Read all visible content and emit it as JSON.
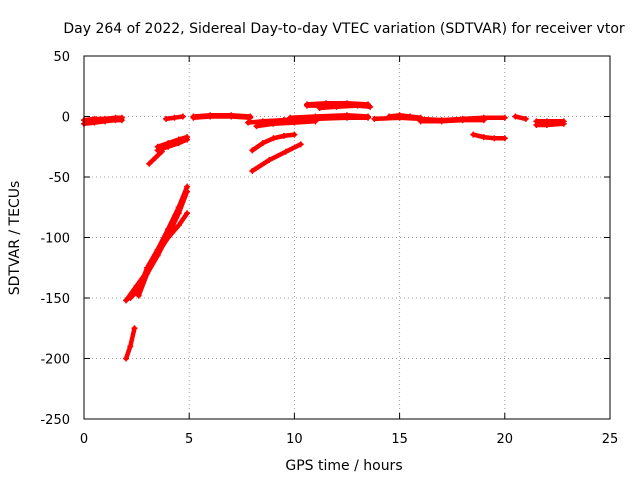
{
  "chart_data": {
    "type": "scatter",
    "title": "Day 264 of 2022, Sidereal Day-to-day VTEC variation (SDTVAR) for receiver vtor",
    "xlabel": "GPS time / hours",
    "ylabel": "SDTVAR / TECUs",
    "xlim": [
      0,
      25
    ],
    "ylim": [
      -250,
      50
    ],
    "x_ticks": [
      0,
      5,
      10,
      15,
      20,
      25
    ],
    "y_ticks": [
      -250,
      -200,
      -150,
      -100,
      -50,
      0,
      50
    ],
    "grid": true,
    "marker": "+",
    "color": "#ff0000",
    "series": [
      {
        "x": [
          0.0,
          0.5,
          1.0,
          1.5,
          1.8
        ],
        "y": [
          -6,
          -5,
          -4,
          -3,
          -3
        ]
      },
      {
        "x": [
          0.0,
          0.5,
          1.0,
          1.5,
          1.8
        ],
        "y": [
          -3,
          -2,
          -2,
          -1,
          -1
        ]
      },
      {
        "x": [
          2.0,
          2.2,
          2.4
        ],
        "y": [
          -200,
          -190,
          -175
        ]
      },
      {
        "x": [
          2.0,
          2.5,
          3.0,
          3.5,
          4.0,
          4.5,
          4.9
        ],
        "y": [
          -152,
          -140,
          -128,
          -113,
          -100,
          -90,
          -80
        ]
      },
      {
        "x": [
          2.2,
          2.6,
          3.0,
          3.5,
          4.0,
          4.5,
          4.9
        ],
        "y": [
          -150,
          -143,
          -125,
          -110,
          -93,
          -75,
          -58
        ]
      },
      {
        "x": [
          2.6,
          3.0,
          3.5,
          4.0,
          4.5,
          4.9
        ],
        "y": [
          -148,
          -130,
          -115,
          -98,
          -80,
          -62
        ]
      },
      {
        "x": [
          3.1,
          3.4,
          3.7
        ],
        "y": [
          -39,
          -34,
          -29
        ]
      },
      {
        "x": [
          3.5,
          4.0,
          4.5,
          4.9
        ],
        "y": [
          -25,
          -22,
          -19,
          -17
        ]
      },
      {
        "x": [
          3.5,
          4.0,
          4.5,
          4.9
        ],
        "y": [
          -28,
          -25,
          -22,
          -19
        ]
      },
      {
        "x": [
          3.9,
          4.3,
          4.7
        ],
        "y": [
          -2,
          -1,
          0
        ]
      },
      {
        "x": [
          5.2,
          6.0,
          7.0,
          7.9
        ],
        "y": [
          0,
          1,
          1,
          0
        ]
      },
      {
        "x": [
          5.2,
          6.0,
          7.0,
          7.9
        ],
        "y": [
          -1,
          0,
          0,
          -1
        ]
      },
      {
        "x": [
          8.0,
          8.8,
          9.6,
          10.3
        ],
        "y": [
          -45,
          -36,
          -29,
          -23
        ]
      },
      {
        "x": [
          8.0,
          8.5,
          9.0,
          9.5,
          10.0
        ],
        "y": [
          -28,
          -22,
          -18,
          -16,
          -15
        ]
      },
      {
        "x": [
          7.8,
          8.5,
          9.5,
          10.5
        ],
        "y": [
          -5,
          -4,
          -3,
          -2
        ]
      },
      {
        "x": [
          8.2,
          9.0,
          10.0,
          11.0
        ],
        "y": [
          -8,
          -6,
          -5,
          -4
        ]
      },
      {
        "x": [
          9.5,
          11.0,
          12.5,
          13.5
        ],
        "y": [
          -3,
          -2,
          -1,
          -1
        ]
      },
      {
        "x": [
          9.8,
          11.0,
          12.5,
          13.5
        ],
        "y": [
          -1,
          0,
          1,
          0
        ]
      },
      {
        "x": [
          10.6,
          11.5,
          12.5,
          13.5
        ],
        "y": [
          10,
          11,
          11,
          10
        ]
      },
      {
        "x": [
          10.6,
          11.5,
          12.5,
          13.5
        ],
        "y": [
          9,
          9,
          10,
          9
        ]
      },
      {
        "x": [
          11.2,
          12.0,
          13.0,
          13.6
        ],
        "y": [
          7,
          8,
          9,
          8
        ]
      },
      {
        "x": [
          13.8,
          15.0,
          16.0,
          17.0,
          18.0,
          19.0,
          20.0
        ],
        "y": [
          -2,
          -1,
          -2,
          -3,
          -2,
          -1,
          -1
        ]
      },
      {
        "x": [
          14.5,
          15.0,
          15.5,
          16.0
        ],
        "y": [
          0,
          1,
          0,
          -1
        ]
      },
      {
        "x": [
          16.0,
          17.0,
          18.0,
          19.0
        ],
        "y": [
          -4,
          -4,
          -3,
          -3
        ]
      },
      {
        "x": [
          18.5,
          19.0,
          19.5,
          20.0
        ],
        "y": [
          -15,
          -17,
          -18,
          -18
        ]
      },
      {
        "x": [
          20.5,
          21.0
        ],
        "y": [
          0,
          -2
        ]
      },
      {
        "x": [
          21.5,
          22.0,
          22.8
        ],
        "y": [
          -4,
          -4,
          -4
        ]
      },
      {
        "x": [
          21.5,
          22.0,
          22.8
        ],
        "y": [
          -7,
          -7,
          -6
        ]
      }
    ]
  }
}
